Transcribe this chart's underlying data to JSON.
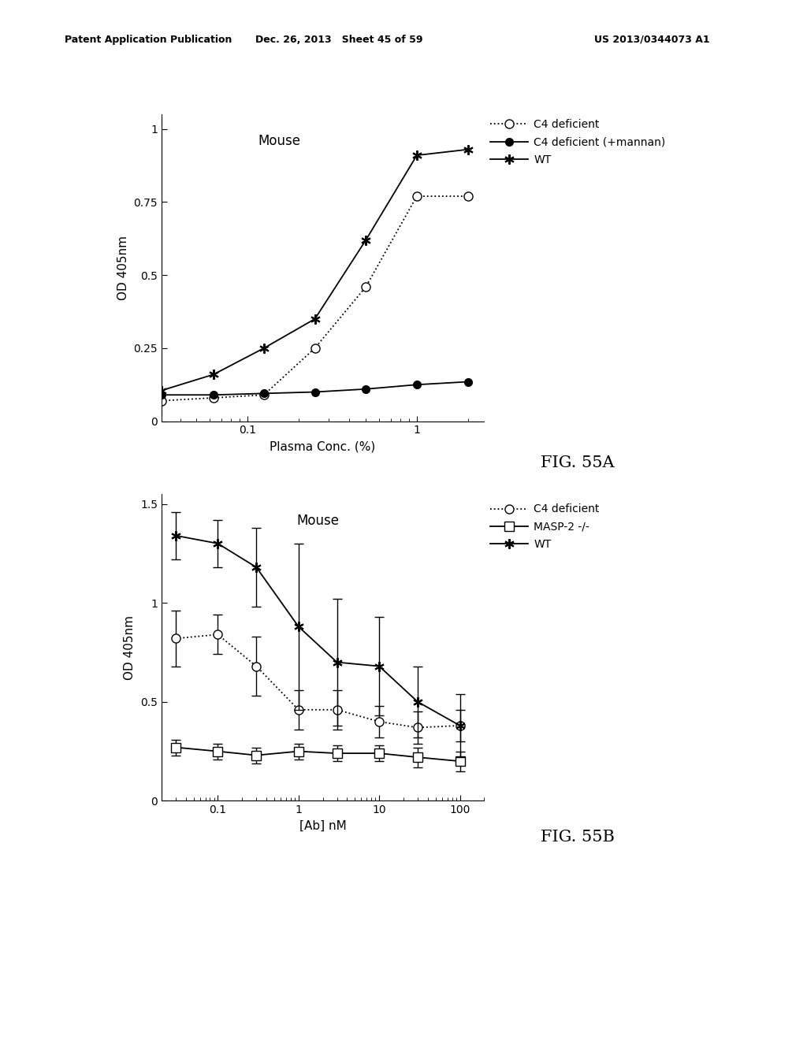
{
  "fig55a": {
    "title_text": "Mouse",
    "xlabel": "Plasma Conc. (%)",
    "ylabel": "OD 405nm",
    "xlim_log": [
      0.031,
      2.5
    ],
    "ylim": [
      0,
      1.05
    ],
    "yticks": [
      0,
      0.25,
      0.5,
      0.75,
      1
    ],
    "ytick_labels": [
      "0",
      "0.25",
      "0.5",
      "0.75",
      "1"
    ],
    "c4_deficient_x": [
      0.031,
      0.063,
      0.125,
      0.25,
      0.5,
      1.0,
      2.0
    ],
    "c4_deficient_y": [
      0.07,
      0.08,
      0.09,
      0.25,
      0.46,
      0.77,
      0.77
    ],
    "c4_deficient_mannan_x": [
      0.031,
      0.063,
      0.125,
      0.25,
      0.5,
      1.0,
      2.0
    ],
    "c4_deficient_mannan_y": [
      0.09,
      0.09,
      0.095,
      0.1,
      0.11,
      0.125,
      0.135
    ],
    "wt_x": [
      0.031,
      0.063,
      0.125,
      0.25,
      0.5,
      1.0,
      2.0
    ],
    "wt_y": [
      0.105,
      0.16,
      0.25,
      0.35,
      0.62,
      0.91,
      0.93
    ],
    "legend_labels": [
      "C4 deficient",
      "C4 deficient (+mannan)",
      "WT"
    ],
    "fig_label": "FIG. 55A"
  },
  "fig55b": {
    "title_text": "Mouse",
    "xlabel": "[Ab] nM",
    "ylabel": "OD 405nm",
    "xlim_log": [
      0.02,
      200
    ],
    "ylim": [
      0,
      1.55
    ],
    "yticks": [
      0,
      0.5,
      1.0,
      1.5
    ],
    "ytick_labels": [
      "0",
      "0.5",
      "1",
      "1.5"
    ],
    "c4_deficient_x": [
      0.03,
      0.1,
      0.3,
      1.0,
      3.0,
      10.0,
      30.0,
      100.0
    ],
    "c4_deficient_y": [
      0.82,
      0.84,
      0.68,
      0.46,
      0.46,
      0.4,
      0.37,
      0.38
    ],
    "c4_deficient_err": [
      0.14,
      0.1,
      0.15,
      0.1,
      0.1,
      0.08,
      0.08,
      0.08
    ],
    "masp2_x": [
      0.03,
      0.1,
      0.3,
      1.0,
      3.0,
      10.0,
      30.0,
      100.0
    ],
    "masp2_y": [
      0.27,
      0.25,
      0.23,
      0.25,
      0.24,
      0.24,
      0.22,
      0.2
    ],
    "masp2_err": [
      0.04,
      0.04,
      0.04,
      0.04,
      0.04,
      0.04,
      0.05,
      0.05
    ],
    "wt_x": [
      0.03,
      0.1,
      0.3,
      1.0,
      3.0,
      10.0,
      30.0,
      100.0
    ],
    "wt_y": [
      1.34,
      1.3,
      1.18,
      0.88,
      0.7,
      0.68,
      0.5,
      0.38
    ],
    "wt_err": [
      0.12,
      0.12,
      0.2,
      0.42,
      0.32,
      0.25,
      0.18,
      0.16
    ],
    "legend_labels": [
      "C4 deficient",
      "MASP-2 -/-",
      "WT"
    ],
    "fig_label": "FIG. 55B"
  },
  "header_left": "Patent Application Publication",
  "header_mid": "Dec. 26, 2013   Sheet 45 of 59",
  "header_right": "US 2013/0344073 A1",
  "bg_color": "#ffffff"
}
